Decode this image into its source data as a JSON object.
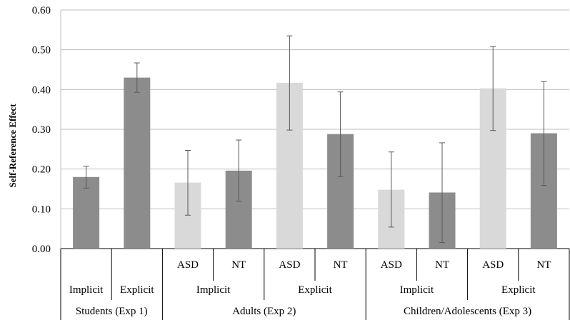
{
  "chart_data": {
    "type": "bar",
    "ylabel": "Self-Reference Effect",
    "ylim": [
      0,
      0.6
    ],
    "yticks": [
      "0.00",
      "0.10",
      "0.20",
      "0.30",
      "0.40",
      "0.50",
      "0.60"
    ],
    "grid": true,
    "colors": {
      "light": "#d9d9d9",
      "dark": "#8c8c8c",
      "error": "#595959"
    },
    "bars": [
      {
        "value": 0.18,
        "err_low": 0.152,
        "err_high": 0.207,
        "shade": "dark"
      },
      {
        "value": 0.43,
        "err_low": 0.393,
        "err_high": 0.467,
        "shade": "dark"
      },
      {
        "value": 0.166,
        "err_low": 0.084,
        "err_high": 0.247,
        "shade": "light"
      },
      {
        "value": 0.196,
        "err_low": 0.119,
        "err_high": 0.273,
        "shade": "dark"
      },
      {
        "value": 0.417,
        "err_low": 0.298,
        "err_high": 0.535,
        "shade": "light"
      },
      {
        "value": 0.288,
        "err_low": 0.181,
        "err_high": 0.394,
        "shade": "dark"
      },
      {
        "value": 0.148,
        "err_low": 0.054,
        "err_high": 0.243,
        "shade": "light"
      },
      {
        "value": 0.141,
        "err_low": 0.015,
        "err_high": 0.266,
        "shade": "dark"
      },
      {
        "value": 0.403,
        "err_low": 0.297,
        "err_high": 0.508,
        "shade": "light"
      },
      {
        "value": 0.29,
        "err_low": 0.159,
        "err_high": 0.42,
        "shade": "dark"
      }
    ],
    "group_labels": {
      "level1": [
        null,
        null,
        "ASD",
        "NT",
        "ASD",
        "NT",
        "ASD",
        "NT",
        "ASD",
        "NT"
      ],
      "level2": [
        {
          "label": "Implicit",
          "span": [
            0,
            0
          ]
        },
        {
          "label": "Explicit",
          "span": [
            1,
            1
          ]
        },
        {
          "label": "Implicit",
          "span": [
            2,
            3
          ]
        },
        {
          "label": "Explicit",
          "span": [
            4,
            5
          ]
        },
        {
          "label": "Implicit",
          "span": [
            6,
            7
          ]
        },
        {
          "label": "Explicit",
          "span": [
            8,
            9
          ]
        }
      ],
      "level3": [
        {
          "label": "Students (Exp 1)",
          "span": [
            0,
            1
          ]
        },
        {
          "label": "Adults (Exp 2)",
          "span": [
            2,
            5
          ]
        },
        {
          "label": "Children/Adolescents (Exp 3)",
          "span": [
            6,
            9
          ]
        }
      ]
    }
  }
}
